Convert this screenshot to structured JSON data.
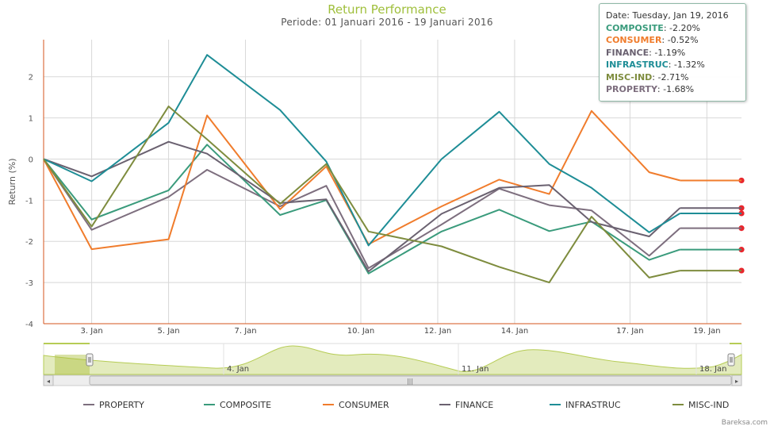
{
  "title": "Return Performance",
  "subtitle": "Periode: 01 Januari 2016 - 19 Januari 2016",
  "brand": "Bareksa.com",
  "tooltip": {
    "date_label": "Date: Tuesday, Jan 19, 2016",
    "rows": [
      {
        "name": "COMPOSITE",
        "value": "-2.20%"
      },
      {
        "name": "CONSUMER",
        "value": "-0.52%"
      },
      {
        "name": "FINANCE",
        "value": "-1.19%"
      },
      {
        "name": "INFRASTRUC",
        "value": "-1.32%"
      },
      {
        "name": "MISC-IND",
        "value": "-2.71%"
      },
      {
        "name": "PROPERTY",
        "value": "-1.68%"
      }
    ]
  },
  "navigator": {
    "labels": [
      "4. Jan",
      "11. Jan",
      "18. Jan"
    ],
    "handle_symbol": "|||",
    "left_arrow": "◂",
    "right_arrow": "▸"
  },
  "colors": {
    "title": "#9fbf3b",
    "axis": "#d4561e",
    "grid": "#d8d8d8",
    "marker": "#e8262d",
    "navigator_fill": "#e3ebbd",
    "navigator_line": "#b6cc55"
  },
  "chart_data": {
    "type": "line",
    "title": "Return Performance",
    "subtitle": "Periode: 01 Januari 2016 - 19 Januari 2016",
    "xlabel": "",
    "ylabel": "Return (%)",
    "ylim": [
      -4,
      2.9
    ],
    "yticks": [
      -4,
      -3,
      -2,
      -1,
      0,
      1,
      2
    ],
    "ytick_labels": [
      "-4",
      "-3",
      "-2",
      "-1",
      "0",
      "1",
      "2"
    ],
    "xticks": [
      3,
      5,
      7,
      10,
      12,
      14,
      17,
      19
    ],
    "xtick_labels": [
      "3. Jan",
      "5. Jan",
      "7. Jan",
      "10. Jan",
      "12. Jan",
      "14. Jan",
      "17. Jan",
      "19. Jan"
    ],
    "x": [
      1.75,
      3,
      5,
      6,
      7.9,
      9.1,
      10.2,
      12.1,
      13.6,
      14.9,
      16,
      17.5,
      18.3,
      19.9
    ],
    "series": [
      {
        "name": "PROPERTY",
        "color": "#7d6e7e",
        "values": [
          0,
          -1.72,
          -0.92,
          -0.26,
          -1.15,
          -0.65,
          -2.65,
          -1.59,
          -0.72,
          -1.12,
          -1.25,
          -2.35,
          -1.68,
          null
        ]
      },
      {
        "name": "COMPOSITE",
        "color": "#3a9b7c",
        "values": [
          0,
          -1.47,
          -0.76,
          0.35,
          -1.36,
          -1.0,
          -2.78,
          -1.76,
          -1.23,
          -1.75,
          -1.52,
          -2.45,
          -2.2,
          null
        ]
      },
      {
        "name": "CONSUMER",
        "color": "#f07c2c",
        "values": [
          0,
          -2.19,
          -1.95,
          1.06,
          -1.22,
          -0.18,
          -2.07,
          -1.15,
          -0.5,
          -0.85,
          1.17,
          -0.32,
          -0.52,
          null
        ]
      },
      {
        "name": "FINANCE",
        "color": "#6a6170",
        "values": [
          0,
          -0.42,
          0.42,
          0.13,
          -1.07,
          -0.98,
          -2.73,
          -1.33,
          -0.7,
          -0.63,
          -1.53,
          -1.88,
          -1.19,
          null
        ]
      },
      {
        "name": "INFRASTRUC",
        "color": "#1e8d96",
        "values": [
          0,
          -0.54,
          0.88,
          2.53,
          1.19,
          -0.06,
          -2.1,
          0,
          1.15,
          -0.12,
          -0.7,
          -1.78,
          -1.32,
          null
        ]
      },
      {
        "name": "MISC-IND",
        "color": "#7e8c3e",
        "values": [
          0,
          -1.64,
          1.28,
          0.48,
          -1.09,
          -0.12,
          -1.76,
          -2.12,
          -2.62,
          -3.0,
          -1.4,
          -2.88,
          -2.71,
          null
        ]
      }
    ],
    "legend": [
      "PROPERTY",
      "COMPOSITE",
      "CONSUMER",
      "FINANCE",
      "INFRASTRUC",
      "MISC-IND"
    ],
    "legend_position": "bottom",
    "grid": true
  }
}
